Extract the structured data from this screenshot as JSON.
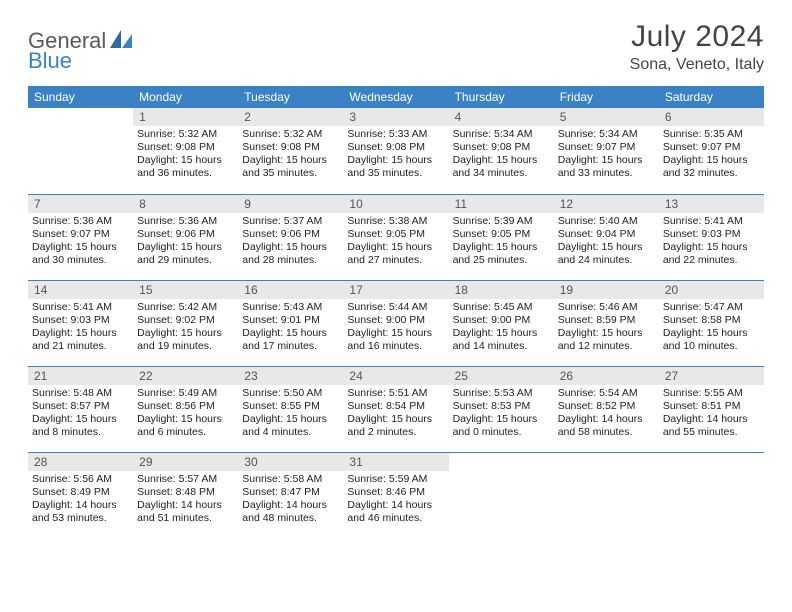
{
  "logo": {
    "text1": "General",
    "text2": "Blue"
  },
  "title": "July 2024",
  "location": "Sona, Veneto, Italy",
  "colors": {
    "header_bg": "#3b82c4",
    "header_text": "#ffffff",
    "daynum_bg": "#e8e8e8",
    "daynum_text": "#555555",
    "body_text": "#222222",
    "rule": "#3b82c4",
    "page_bg": "#ffffff",
    "logo_gray": "#5a5a5a",
    "logo_blue": "#3b82c4"
  },
  "weekdays": [
    "Sunday",
    "Monday",
    "Tuesday",
    "Wednesday",
    "Thursday",
    "Friday",
    "Saturday"
  ],
  "weeks": [
    [
      null,
      {
        "n": "1",
        "sr": "Sunrise: 5:32 AM",
        "ss": "Sunset: 9:08 PM",
        "d1": "Daylight: 15 hours",
        "d2": "and 36 minutes."
      },
      {
        "n": "2",
        "sr": "Sunrise: 5:32 AM",
        "ss": "Sunset: 9:08 PM",
        "d1": "Daylight: 15 hours",
        "d2": "and 35 minutes."
      },
      {
        "n": "3",
        "sr": "Sunrise: 5:33 AM",
        "ss": "Sunset: 9:08 PM",
        "d1": "Daylight: 15 hours",
        "d2": "and 35 minutes."
      },
      {
        "n": "4",
        "sr": "Sunrise: 5:34 AM",
        "ss": "Sunset: 9:08 PM",
        "d1": "Daylight: 15 hours",
        "d2": "and 34 minutes."
      },
      {
        "n": "5",
        "sr": "Sunrise: 5:34 AM",
        "ss": "Sunset: 9:07 PM",
        "d1": "Daylight: 15 hours",
        "d2": "and 33 minutes."
      },
      {
        "n": "6",
        "sr": "Sunrise: 5:35 AM",
        "ss": "Sunset: 9:07 PM",
        "d1": "Daylight: 15 hours",
        "d2": "and 32 minutes."
      }
    ],
    [
      {
        "n": "7",
        "sr": "Sunrise: 5:36 AM",
        "ss": "Sunset: 9:07 PM",
        "d1": "Daylight: 15 hours",
        "d2": "and 30 minutes."
      },
      {
        "n": "8",
        "sr": "Sunrise: 5:36 AM",
        "ss": "Sunset: 9:06 PM",
        "d1": "Daylight: 15 hours",
        "d2": "and 29 minutes."
      },
      {
        "n": "9",
        "sr": "Sunrise: 5:37 AM",
        "ss": "Sunset: 9:06 PM",
        "d1": "Daylight: 15 hours",
        "d2": "and 28 minutes."
      },
      {
        "n": "10",
        "sr": "Sunrise: 5:38 AM",
        "ss": "Sunset: 9:05 PM",
        "d1": "Daylight: 15 hours",
        "d2": "and 27 minutes."
      },
      {
        "n": "11",
        "sr": "Sunrise: 5:39 AM",
        "ss": "Sunset: 9:05 PM",
        "d1": "Daylight: 15 hours",
        "d2": "and 25 minutes."
      },
      {
        "n": "12",
        "sr": "Sunrise: 5:40 AM",
        "ss": "Sunset: 9:04 PM",
        "d1": "Daylight: 15 hours",
        "d2": "and 24 minutes."
      },
      {
        "n": "13",
        "sr": "Sunrise: 5:41 AM",
        "ss": "Sunset: 9:03 PM",
        "d1": "Daylight: 15 hours",
        "d2": "and 22 minutes."
      }
    ],
    [
      {
        "n": "14",
        "sr": "Sunrise: 5:41 AM",
        "ss": "Sunset: 9:03 PM",
        "d1": "Daylight: 15 hours",
        "d2": "and 21 minutes."
      },
      {
        "n": "15",
        "sr": "Sunrise: 5:42 AM",
        "ss": "Sunset: 9:02 PM",
        "d1": "Daylight: 15 hours",
        "d2": "and 19 minutes."
      },
      {
        "n": "16",
        "sr": "Sunrise: 5:43 AM",
        "ss": "Sunset: 9:01 PM",
        "d1": "Daylight: 15 hours",
        "d2": "and 17 minutes."
      },
      {
        "n": "17",
        "sr": "Sunrise: 5:44 AM",
        "ss": "Sunset: 9:00 PM",
        "d1": "Daylight: 15 hours",
        "d2": "and 16 minutes."
      },
      {
        "n": "18",
        "sr": "Sunrise: 5:45 AM",
        "ss": "Sunset: 9:00 PM",
        "d1": "Daylight: 15 hours",
        "d2": "and 14 minutes."
      },
      {
        "n": "19",
        "sr": "Sunrise: 5:46 AM",
        "ss": "Sunset: 8:59 PM",
        "d1": "Daylight: 15 hours",
        "d2": "and 12 minutes."
      },
      {
        "n": "20",
        "sr": "Sunrise: 5:47 AM",
        "ss": "Sunset: 8:58 PM",
        "d1": "Daylight: 15 hours",
        "d2": "and 10 minutes."
      }
    ],
    [
      {
        "n": "21",
        "sr": "Sunrise: 5:48 AM",
        "ss": "Sunset: 8:57 PM",
        "d1": "Daylight: 15 hours",
        "d2": "and 8 minutes."
      },
      {
        "n": "22",
        "sr": "Sunrise: 5:49 AM",
        "ss": "Sunset: 8:56 PM",
        "d1": "Daylight: 15 hours",
        "d2": "and 6 minutes."
      },
      {
        "n": "23",
        "sr": "Sunrise: 5:50 AM",
        "ss": "Sunset: 8:55 PM",
        "d1": "Daylight: 15 hours",
        "d2": "and 4 minutes."
      },
      {
        "n": "24",
        "sr": "Sunrise: 5:51 AM",
        "ss": "Sunset: 8:54 PM",
        "d1": "Daylight: 15 hours",
        "d2": "and 2 minutes."
      },
      {
        "n": "25",
        "sr": "Sunrise: 5:53 AM",
        "ss": "Sunset: 8:53 PM",
        "d1": "Daylight: 15 hours",
        "d2": "and 0 minutes."
      },
      {
        "n": "26",
        "sr": "Sunrise: 5:54 AM",
        "ss": "Sunset: 8:52 PM",
        "d1": "Daylight: 14 hours",
        "d2": "and 58 minutes."
      },
      {
        "n": "27",
        "sr": "Sunrise: 5:55 AM",
        "ss": "Sunset: 8:51 PM",
        "d1": "Daylight: 14 hours",
        "d2": "and 55 minutes."
      }
    ],
    [
      {
        "n": "28",
        "sr": "Sunrise: 5:56 AM",
        "ss": "Sunset: 8:49 PM",
        "d1": "Daylight: 14 hours",
        "d2": "and 53 minutes."
      },
      {
        "n": "29",
        "sr": "Sunrise: 5:57 AM",
        "ss": "Sunset: 8:48 PM",
        "d1": "Daylight: 14 hours",
        "d2": "and 51 minutes."
      },
      {
        "n": "30",
        "sr": "Sunrise: 5:58 AM",
        "ss": "Sunset: 8:47 PM",
        "d1": "Daylight: 14 hours",
        "d2": "and 48 minutes."
      },
      {
        "n": "31",
        "sr": "Sunrise: 5:59 AM",
        "ss": "Sunset: 8:46 PM",
        "d1": "Daylight: 14 hours",
        "d2": "and 46 minutes."
      },
      null,
      null,
      null
    ]
  ]
}
